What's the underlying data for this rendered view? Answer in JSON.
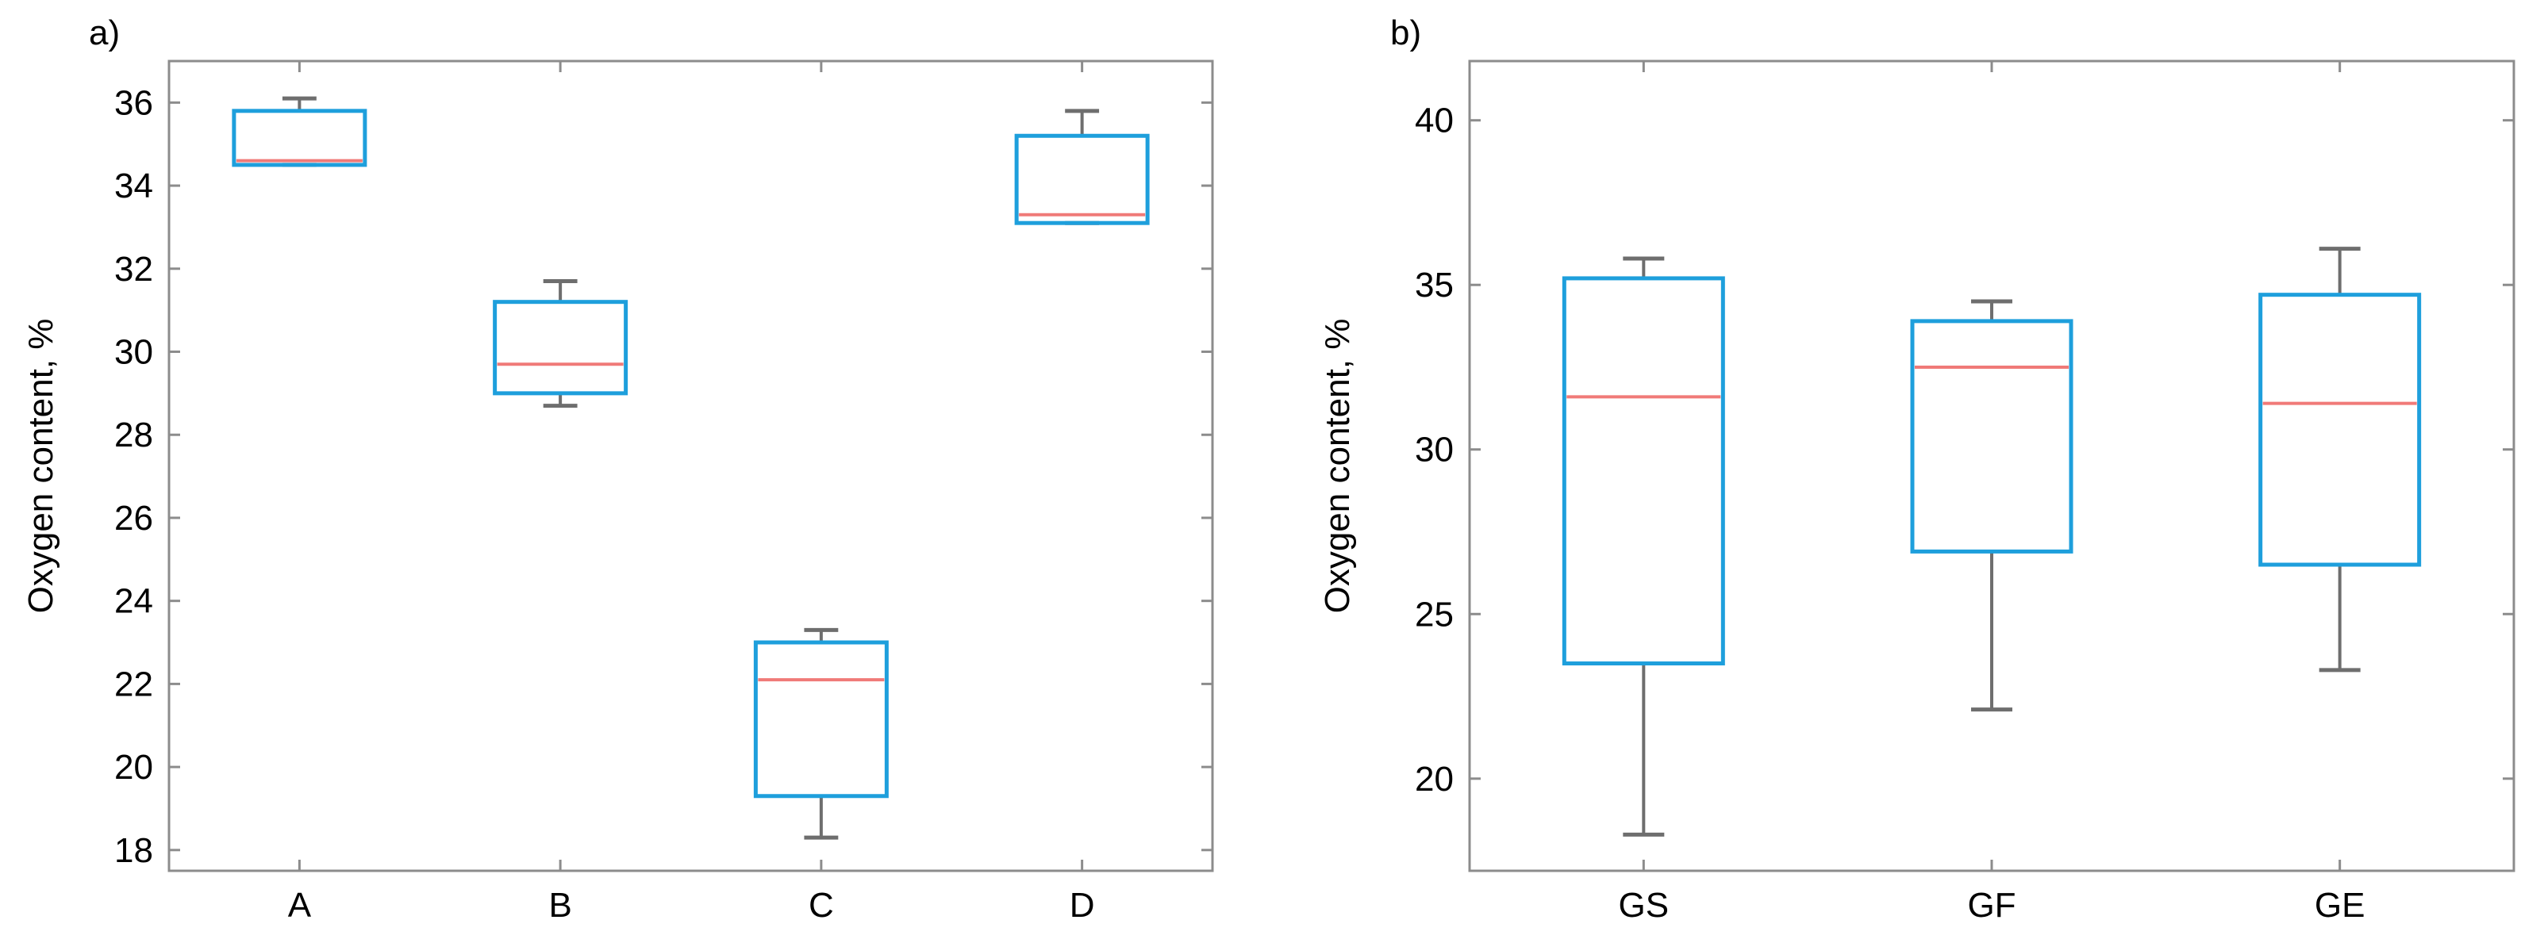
{
  "colors": {
    "box": "#1e9fdc",
    "median": "#f07a78",
    "whisker": "#6e6e6e",
    "axis": "#8c8c8c"
  },
  "chart_data": [
    {
      "type": "box",
      "panel_label": "a)",
      "xlabel": "",
      "ylabel": "Oxygen content, %",
      "ylim": [
        17.5,
        37.0
      ],
      "yticks": [
        18,
        20,
        22,
        24,
        26,
        28,
        30,
        32,
        34,
        36
      ],
      "categories": [
        "A",
        "B",
        "C",
        "D"
      ],
      "boxes": [
        {
          "category": "A",
          "min": 34.5,
          "q1": 34.5,
          "median": 34.6,
          "q3": 35.8,
          "max": 36.1
        },
        {
          "category": "B",
          "min": 28.7,
          "q1": 29.0,
          "median": 29.7,
          "q3": 31.2,
          "max": 31.7
        },
        {
          "category": "C",
          "min": 18.3,
          "q1": 19.3,
          "median": 22.1,
          "q3": 23.0,
          "max": 23.3
        },
        {
          "category": "D",
          "min": 33.1,
          "q1": 33.1,
          "median": 33.3,
          "q3": 35.2,
          "max": 35.8
        }
      ]
    },
    {
      "type": "box",
      "panel_label": "b)",
      "xlabel": "",
      "ylabel": "Oxygen content, %",
      "ylim": [
        17.2,
        41.8
      ],
      "yticks": [
        20,
        25,
        30,
        35,
        40
      ],
      "categories": [
        "GS",
        "GF",
        "GE"
      ],
      "boxes": [
        {
          "category": "GS",
          "min": 18.3,
          "q1": 23.5,
          "median": 31.6,
          "q3": 35.2,
          "max": 35.8
        },
        {
          "category": "GF",
          "min": 22.1,
          "q1": 26.9,
          "median": 32.5,
          "q3": 33.9,
          "max": 34.5
        },
        {
          "category": "GE",
          "min": 23.3,
          "q1": 26.5,
          "median": 31.4,
          "q3": 34.7,
          "max": 36.1
        }
      ]
    }
  ]
}
